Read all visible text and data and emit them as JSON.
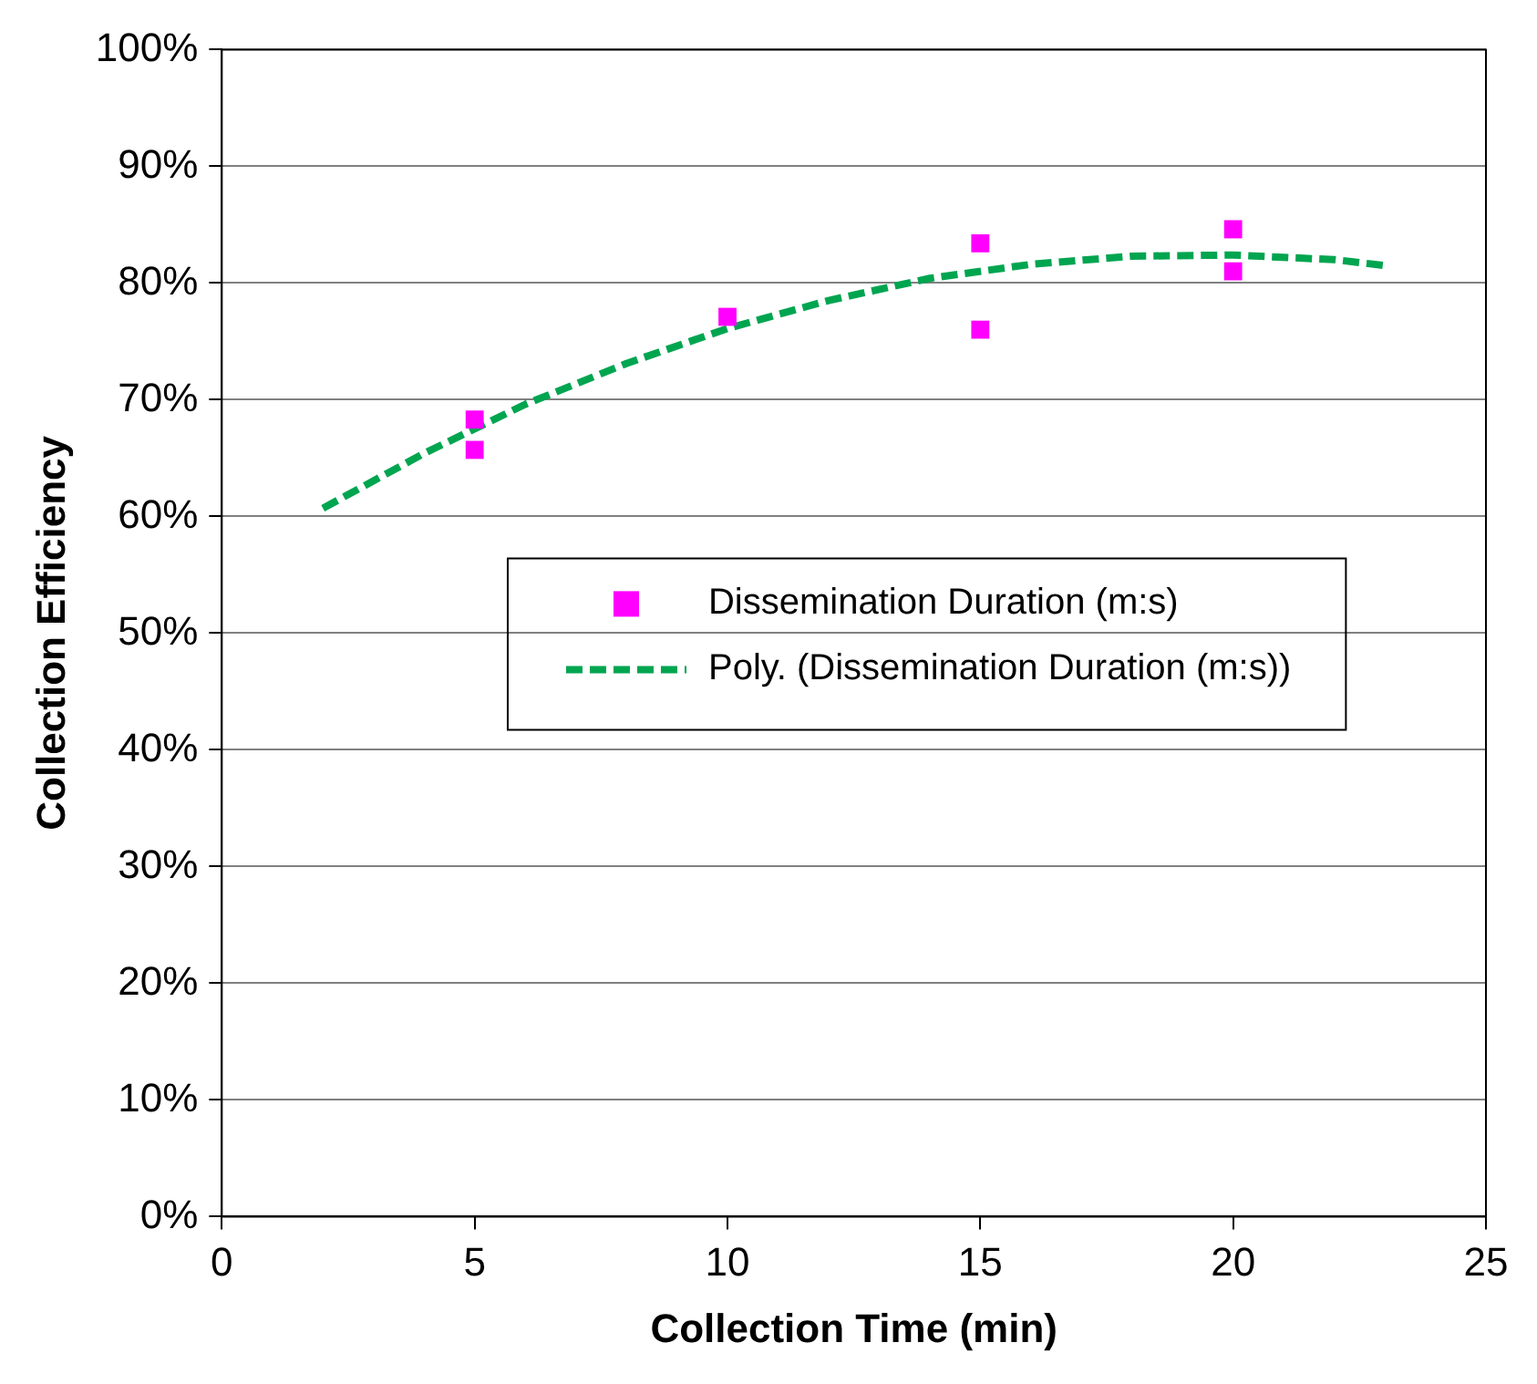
{
  "chart_data": {
    "type": "scatter",
    "xlabel": "Collection Time (min)",
    "ylabel": "Collection Efficiency",
    "xlim": [
      0,
      25
    ],
    "xticks": [
      0,
      5,
      10,
      15,
      20,
      25
    ],
    "ylim": [
      0,
      100
    ],
    "yticks": [
      {
        "value": 0,
        "label": "0%"
      },
      {
        "value": 10,
        "label": "10%"
      },
      {
        "value": 20,
        "label": "20%"
      },
      {
        "value": 30,
        "label": "30%"
      },
      {
        "value": 40,
        "label": "40%"
      },
      {
        "value": 50,
        "label": "50%"
      },
      {
        "value": 60,
        "label": "60%"
      },
      {
        "value": 70,
        "label": "70%"
      },
      {
        "value": 80,
        "label": "80%"
      },
      {
        "value": 90,
        "label": "90%"
      },
      {
        "value": 100,
        "label": "100%"
      }
    ],
    "grid": "y",
    "legend": "center",
    "series": [
      {
        "name": "Dissemination Duration (m:s)",
        "type": "scatter",
        "marker": "square",
        "color": "#ff00ff",
        "x": [
          5,
          5,
          10,
          15,
          15,
          20,
          20
        ],
        "values": [
          68.3,
          65.7,
          77.1,
          83.4,
          76.0,
          84.6,
          81.0
        ]
      },
      {
        "name": "Poly. (Dissemination Duration (m:s))",
        "type": "line",
        "marker": "none",
        "line_style": "dashed",
        "color": "#00a550",
        "x": [
          2,
          4,
          6,
          8,
          10,
          12,
          14,
          16,
          18,
          20,
          22,
          23
        ],
        "values": [
          60.7,
          65.4,
          69.6,
          73.1,
          76.1,
          78.5,
          80.4,
          81.6,
          82.3,
          82.4,
          82.0,
          81.5
        ]
      }
    ]
  }
}
